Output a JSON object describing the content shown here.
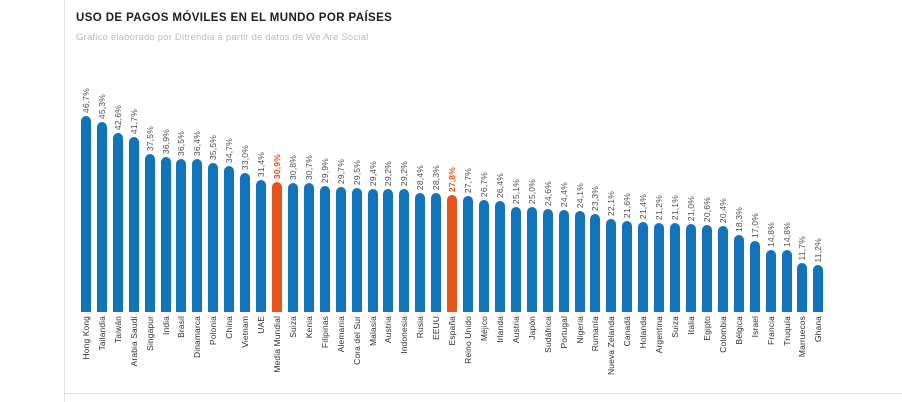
{
  "header": {
    "title": "USO DE PAGOS MÓVILES EN EL MUNDO POR PAÍSES",
    "subtitle": "Gráfico elaborado por Ditrendia a partir de datos de We Are Social"
  },
  "colors": {
    "bar_blue": "#1173b9",
    "bar_orange": "#e4551c",
    "value_label": "#4d4d4d",
    "value_label_highlight": "#e4551c",
    "country_label": "#2f2f2f"
  },
  "chart_data": {
    "type": "bar",
    "title": "USO DE PAGOS MÓVILES EN EL MUNDO POR PAÍSES",
    "subtitle": "Gráfico elaborado por Ditrendia a partir de datos de We Are Social",
    "xlabel": "",
    "ylabel": "",
    "ylim": [
      0,
      50
    ],
    "grid": false,
    "legend": false,
    "value_suffix": "%",
    "decimal_separator": ",",
    "categories": [
      "Hong Kong",
      "Tailandia",
      "Taiwán",
      "Arabia Saudí",
      "Singapur",
      "India",
      "Brasil",
      "Dinamarca",
      "Polonia",
      "China",
      "Vietnam",
      "UAE",
      "Media Mundial",
      "Suiza",
      "Kenia",
      "Filipinas",
      "Alemania",
      "Cora del Sur",
      "Malasia",
      "Austria",
      "Indonesia",
      "Rusia",
      "EEUU",
      "España",
      "Reino Unido",
      "Méjico",
      "Irlanda",
      "Austria",
      "Japón",
      "Sudáfrica",
      "Portugal",
      "Nigeria",
      "Rumanía",
      "Nueva Zelanda",
      "Canadá",
      "Holanda",
      "Argentina",
      "Suiza",
      "Italia",
      "Egipto",
      "Colombia",
      "Bélgica",
      "Israel",
      "Francia",
      "Truquía",
      "Marruecos",
      "Ghana"
    ],
    "values": [
      46.7,
      45.3,
      42.6,
      41.7,
      37.5,
      36.9,
      36.5,
      36.4,
      35.5,
      34.7,
      33.0,
      31.4,
      30.9,
      30.8,
      30.7,
      29.9,
      29.7,
      29.5,
      29.4,
      29.2,
      29.2,
      28.4,
      28.3,
      27.8,
      27.7,
      26.7,
      26.4,
      25.1,
      25.0,
      24.6,
      24.4,
      24.1,
      23.3,
      22.1,
      21.6,
      21.4,
      21.2,
      21.1,
      21.0,
      20.6,
      20.4,
      18.3,
      17.0,
      14.8,
      14.8,
      11.7,
      11.2
    ],
    "value_labels": [
      "46,7%",
      "45,3%",
      "42,6%",
      "41,7%",
      "37,5%",
      "36,9%",
      "36,5%",
      "36,4%",
      "35,5%",
      "34,7%",
      "33,0%",
      "31,4%",
      "30,9%",
      "30,8%",
      "30,7%",
      "29,9%",
      "29,7%",
      "29,5%",
      "29,4%",
      "29,2%",
      "29,2%",
      "28,4%",
      "28,3%",
      "27,8%",
      "27,7%",
      "26,7%",
      "26,4%",
      "25,1%",
      "25,0%",
      "24,6%",
      "24,4%",
      "24,1%",
      "23,3%",
      "22,1%",
      "21,6%",
      "21,4%",
      "21,2%",
      "21,1%",
      "21,0%",
      "20,6%",
      "20,4%",
      "18,3%",
      "17,0%",
      "14,8%",
      "14,8%",
      "11,7%",
      "11,2%"
    ],
    "highlighted_categories": [
      "Media Mundial",
      "España"
    ],
    "highlight_indices": [
      12,
      23
    ]
  }
}
